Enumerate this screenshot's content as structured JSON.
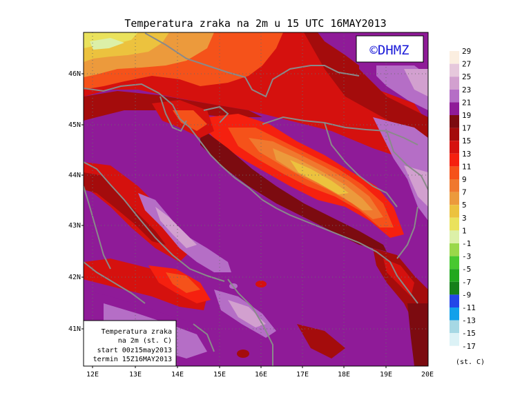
{
  "title": "Temperatura zraka na 2m u 15 UTC 16MAY2013",
  "logo_text": "©DHMZ",
  "info_box": {
    "line1": "Temperatura zraka",
    "line2": "na 2m (st. C)",
    "line3": "start 00z15may2013",
    "line4": "termin 15Z16MAY2013"
  },
  "lat_labels": [
    "46N",
    "45N",
    "44N",
    "43N",
    "42N",
    "41N"
  ],
  "lon_labels": [
    "12E",
    "13E",
    "14E",
    "15E",
    "16E",
    "17E",
    "18E",
    "19E",
    "20E"
  ],
  "colorbar": {
    "unit": "(st. C)",
    "levels": [
      {
        "label": "29",
        "color": "#fbeee0"
      },
      {
        "label": "27",
        "color": "#e6c8dc"
      },
      {
        "label": "25",
        "color": "#d2a0cf"
      },
      {
        "label": "23",
        "color": "#b56ec6"
      },
      {
        "label": "21",
        "color": "#8f1b98"
      },
      {
        "label": "19",
        "color": "#7c0b10"
      },
      {
        "label": "17",
        "color": "#a40c0c"
      },
      {
        "label": "15",
        "color": "#d5110e"
      },
      {
        "label": "13",
        "color": "#f5200f"
      },
      {
        "label": "11",
        "color": "#f5521a"
      },
      {
        "label": "9",
        "color": "#f0782e"
      },
      {
        "label": "7",
        "color": "#ec9a3c"
      },
      {
        "label": "5",
        "color": "#ecc23e"
      },
      {
        "label": "3",
        "color": "#eae25c"
      },
      {
        "label": "1",
        "color": "#dcf0a8"
      },
      {
        "label": "-1",
        "color": "#9ad84a"
      },
      {
        "label": "-3",
        "color": "#48c830"
      },
      {
        "label": "-5",
        "color": "#22a81e"
      },
      {
        "label": "-7",
        "color": "#16801a"
      },
      {
        "label": "-9",
        "color": "#2346e8"
      },
      {
        "label": "-11",
        "color": "#12a0ea"
      },
      {
        "label": "-13",
        "color": "#a6d8e4"
      },
      {
        "label": "-15",
        "color": "#dcf2f6"
      },
      {
        "label": "-17",
        "color": "#ffffff"
      }
    ]
  }
}
